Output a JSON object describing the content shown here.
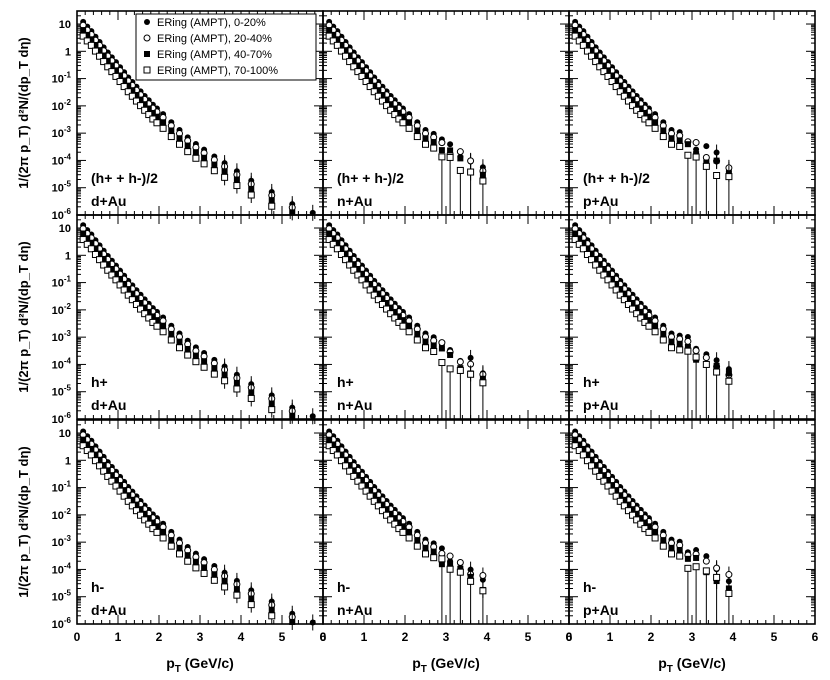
{
  "figure": {
    "xlabel": "p_T (GeV/c)",
    "ylabel": "1/(2π p_T) d²N/(dp_T dη)"
  },
  "legend": {
    "entries": [
      {
        "label": "ERing (AMPT), 0-20%",
        "marker": "filled-circle"
      },
      {
        "label": "ERing (AMPT), 20-40%",
        "marker": "open-circle"
      },
      {
        "label": "ERing (AMPT), 40-70%",
        "marker": "filled-square"
      },
      {
        "label": "ERing (AMPT), 70-100%",
        "marker": "open-square"
      }
    ]
  },
  "chart_data": {
    "type": "scatter",
    "y_scale": "log",
    "xlim": [
      0,
      6
    ],
    "ylim": [
      1e-06,
      30
    ],
    "x_ticks": [
      0,
      1,
      2,
      3,
      4,
      5,
      6
    ],
    "y_ticks": [
      {
        "value": 10,
        "label": "10"
      },
      {
        "value": 1,
        "label": "1"
      },
      {
        "value": 0.1,
        "label": "10-1"
      },
      {
        "value": 0.01,
        "label": "10-2"
      },
      {
        "value": 0.001,
        "label": "10-3"
      },
      {
        "value": 0.0001,
        "label": "10-4"
      },
      {
        "value": 1e-05,
        "label": "10-5"
      },
      {
        "value": 1e-06,
        "label": "10-6"
      }
    ],
    "rows": [
      {
        "charge": "(h+ + h-)/2"
      },
      {
        "charge": "h+"
      },
      {
        "charge": "h-"
      }
    ],
    "columns": [
      {
        "system": "d+Au"
      },
      {
        "system": "n+Au"
      },
      {
        "system": "p+Au"
      }
    ],
    "series_names": [
      "ERing (AMPT), 0-20%",
      "ERing (AMPT), 20-40%",
      "ERing (AMPT), 40-70%",
      "ERing (AMPT), 70-100%"
    ],
    "x_points": [
      0.15,
      0.25,
      0.35,
      0.45,
      0.55,
      0.65,
      0.75,
      0.85,
      0.95,
      1.05,
      1.15,
      1.25,
      1.35,
      1.45,
      1.55,
      1.65,
      1.75,
      1.85,
      1.95,
      2.1,
      2.3,
      2.5,
      2.7,
      2.9,
      3.1,
      3.35,
      3.6,
      3.9,
      4.25,
      4.75,
      5.25,
      5.75
    ],
    "base_curve": [
      12,
      8,
      5.5,
      3.4,
      2.2,
      1.4,
      0.9,
      0.6,
      0.4,
      0.26,
      0.17,
      0.11,
      0.075,
      0.05,
      0.034,
      0.023,
      0.016,
      0.011,
      0.008,
      0.005,
      0.0025,
      0.0013,
      0.0007,
      0.0004,
      0.00025,
      0.00014,
      8e-05,
      4e-05,
      1.8e-05,
      7e-06,
      2.5e-06,
      1.2e-06
    ],
    "series_scale": [
      1.0,
      0.75,
      0.5,
      0.3
    ],
    "xmax_by_system": {
      "d+Au": 5.75,
      "n+Au": 3.9,
      "p+Au": 3.9
    }
  }
}
